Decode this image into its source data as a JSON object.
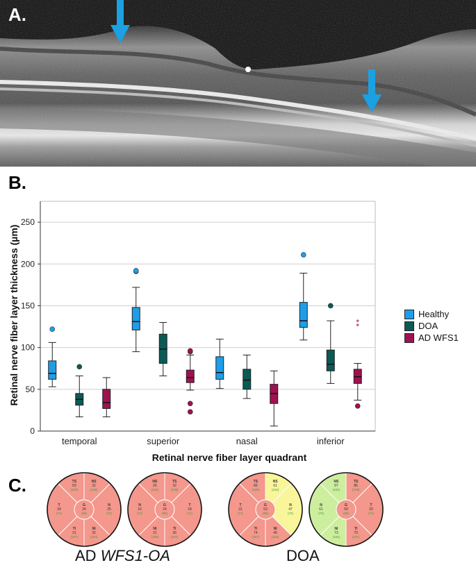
{
  "panel_a": {
    "label": "A.",
    "arrow_color": "#1ba1e2"
  },
  "panel_b": {
    "label": "B.",
    "chart_data": {
      "type": "boxplot",
      "ylabel": "Retinal nerve fiber layer thickness (µm)",
      "xlabel": "Retinal nerve fiber layer quadrant",
      "ylim": [
        0,
        275
      ],
      "yticks": [
        0,
        50,
        100,
        150,
        200,
        250
      ],
      "grid": true,
      "legend_position": "right",
      "categories": [
        "temporal",
        "superior",
        "nasal",
        "inferior"
      ],
      "series": [
        {
          "name": "Healthy",
          "color": "#1f9ee8",
          "boxes": [
            {
              "min": 53,
              "q1": 62,
              "median": 69,
              "q3": 84,
              "max": 106,
              "outliers": [
                122
              ]
            },
            {
              "min": 95,
              "q1": 121,
              "median": 131,
              "q3": 148,
              "max": 172,
              "outliers": [
                191,
                192
              ]
            },
            {
              "min": 51,
              "q1": 62,
              "median": 70,
              "q3": 89,
              "max": 110,
              "outliers": []
            },
            {
              "min": 109,
              "q1": 124,
              "median": 132,
              "q3": 154,
              "max": 189,
              "outliers": [
                211
              ]
            }
          ]
        },
        {
          "name": "DOA",
          "color": "#0b5a55",
          "boxes": [
            {
              "min": 17,
              "q1": 31,
              "median": 38,
              "q3": 45,
              "max": 66,
              "outliers": [
                77
              ]
            },
            {
              "min": 66,
              "q1": 81,
              "median": 98,
              "q3": 116,
              "max": 130,
              "outliers": []
            },
            {
              "min": 39,
              "q1": 50,
              "median": 61,
              "q3": 74,
              "max": 91,
              "outliers": []
            },
            {
              "min": 57,
              "q1": 72,
              "median": 80,
              "q3": 97,
              "max": 132,
              "outliers": [
                150
              ]
            }
          ]
        },
        {
          "name": "AD WFS1",
          "color": "#a01150",
          "boxes": [
            {
              "min": 17,
              "q1": 27,
              "median": 34,
              "q3": 50,
              "max": 64,
              "outliers": []
            },
            {
              "min": 49,
              "q1": 58,
              "median": 64,
              "q3": 73,
              "max": 91,
              "outliers": [
                95,
                96,
                33,
                23
              ]
            },
            {
              "min": 6,
              "q1": 33,
              "median": 45,
              "q3": 56,
              "max": 72,
              "outliers": []
            },
            {
              "min": 37,
              "q1": 57,
              "median": 65,
              "q3": 74,
              "max": 81,
              "outliers": [
                30
              ]
            }
          ],
          "extremes": [
            {
              "category": "inferior",
              "value": 125
            },
            {
              "category": "inferior",
              "value": 130
            }
          ]
        }
      ]
    }
  },
  "panel_c": {
    "label": "C.",
    "groups": [
      {
        "caption_prefix": "AD ",
        "caption_italic": "WFS1-OA"
      },
      {
        "caption_prefix": "DOA",
        "caption_italic": ""
      }
    ],
    "colors": {
      "red": "#f4978c",
      "yellow": "#f9f59a",
      "green": "#cdee9e",
      "text_val": "#333333",
      "text_ref": "#3a9a3a"
    },
    "diagrams": [
      {
        "name": "diagram-ad-od",
        "sectors": [
          {
            "id": "TS",
            "value": "59",
            "ref": "(109)",
            "color": "red"
          },
          {
            "id": "NS",
            "value": "31",
            "ref": "(106)",
            "color": "red"
          },
          {
            "id": "N",
            "value": "25",
            "ref": "(72)",
            "color": "red"
          },
          {
            "id": "NI",
            "value": "32",
            "ref": "(104)",
            "color": "red"
          },
          {
            "id": "TI",
            "value": "31",
            "ref": "(107)",
            "color": "red"
          },
          {
            "id": "T",
            "value": "34",
            "ref": "(71)",
            "color": "red"
          },
          {
            "id": "G",
            "value": "34",
            "ref": "(99)",
            "color": "red"
          }
        ]
      },
      {
        "name": "diagram-ad-os",
        "sectors": [
          {
            "id": "NS",
            "value": "26",
            "ref": "(102)",
            "color": "red"
          },
          {
            "id": "TS",
            "value": "32",
            "ref": "(109)",
            "color": "red"
          },
          {
            "id": "T",
            "value": "18",
            "ref": "(71)",
            "color": "red"
          },
          {
            "id": "TI",
            "value": "36",
            "ref": "(107)",
            "color": "red"
          },
          {
            "id": "NI",
            "value": "31",
            "ref": "(108)",
            "color": "red"
          },
          {
            "id": "N",
            "value": "16",
            "ref": "(72)",
            "color": "red"
          },
          {
            "id": "G",
            "value": "24",
            "ref": "(99)",
            "color": "red"
          }
        ]
      },
      {
        "name": "diagram-doa-od",
        "sectors": [
          {
            "id": "TS",
            "value": "86",
            "ref": "(109)",
            "color": "red"
          },
          {
            "id": "NS",
            "value": "61",
            "ref": "(102)",
            "color": "yellow"
          },
          {
            "id": "N",
            "value": "47",
            "ref": "(72)",
            "color": "yellow"
          },
          {
            "id": "NI",
            "value": "40",
            "ref": "(104)",
            "color": "red"
          },
          {
            "id": "TI",
            "value": "74",
            "ref": "(107)",
            "color": "red"
          },
          {
            "id": "T",
            "value": "31",
            "ref": "(71)",
            "color": "red"
          },
          {
            "id": "G",
            "value": "53",
            "ref": "(99)",
            "color": "red"
          }
        ]
      },
      {
        "name": "diagram-doa-os",
        "sectors": [
          {
            "id": "NS",
            "value": "97",
            "ref": "(102)",
            "color": "green"
          },
          {
            "id": "TS",
            "value": "86",
            "ref": "(109)",
            "color": "red"
          },
          {
            "id": "T",
            "value": "20",
            "ref": "(71)",
            "color": "red"
          },
          {
            "id": "TI",
            "value": "70",
            "ref": "(107)",
            "color": "red"
          },
          {
            "id": "NI",
            "value": "73",
            "ref": "(104)",
            "color": "green"
          },
          {
            "id": "N",
            "value": "61",
            "ref": "(72)",
            "color": "green"
          },
          {
            "id": "G",
            "value": "69",
            "ref": "(99)",
            "color": "red"
          }
        ]
      }
    ]
  }
}
